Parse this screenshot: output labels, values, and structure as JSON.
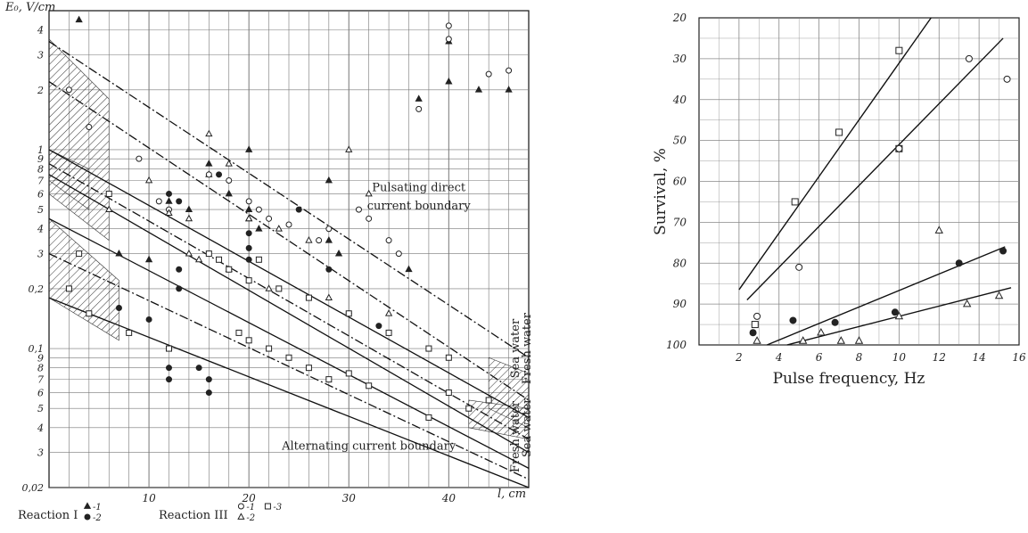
{
  "chart_data": [
    {
      "type": "scatter",
      "title": "",
      "ylabel": "E₀, V/cm",
      "xlabel": "l, cm",
      "xlim": [
        0,
        48
      ],
      "ylim_log": [
        0.02,
        5
      ],
      "y_scale": "log",
      "grid": true,
      "x_ticks": [
        10,
        20,
        30,
        40
      ],
      "y_ticks": [
        {
          "v": 4,
          "t": "4"
        },
        {
          "v": 3,
          "t": "3"
        },
        {
          "v": 2,
          "t": "2"
        },
        {
          "v": 1,
          "t": "1"
        },
        {
          "v": 0.9,
          "t": "9"
        },
        {
          "v": 0.8,
          "t": "8"
        },
        {
          "v": 0.7,
          "t": "7"
        },
        {
          "v": 0.6,
          "t": "6"
        },
        {
          "v": 0.5,
          "t": "5"
        },
        {
          "v": 0.4,
          "t": "4"
        },
        {
          "v": 0.3,
          "t": "3"
        },
        {
          "v": 0.2,
          "t": "0,2"
        },
        {
          "v": 0.1,
          "t": "0,1"
        },
        {
          "v": 0.09,
          "t": "9"
        },
        {
          "v": 0.08,
          "t": "8"
        },
        {
          "v": 0.07,
          "t": "7"
        },
        {
          "v": 0.06,
          "t": "6"
        },
        {
          "v": 0.05,
          "t": "5"
        },
        {
          "v": 0.04,
          "t": "4"
        },
        {
          "v": 0.03,
          "t": "3"
        },
        {
          "v": 0.02,
          "t": "0,02"
        }
      ],
      "lines": [
        {
          "kind": "dashdot",
          "points": [
            [
              0,
              3.5
            ],
            [
              48,
              0.09
            ]
          ]
        },
        {
          "kind": "dashdot",
          "points": [
            [
              0,
              2.2
            ],
            [
              48,
              0.055
            ]
          ]
        },
        {
          "kind": "solid",
          "points": [
            [
              0,
              1.0
            ],
            [
              48,
              0.045
            ]
          ]
        },
        {
          "kind": "dashdot",
          "points": [
            [
              0,
              0.85
            ],
            [
              48,
              0.035
            ]
          ]
        },
        {
          "kind": "solid",
          "points": [
            [
              0,
              0.75
            ],
            [
              48,
              0.03
            ]
          ]
        },
        {
          "kind": "solid",
          "points": [
            [
              0,
              0.45
            ],
            [
              48,
              0.025
            ]
          ]
        },
        {
          "kind": "dashdot",
          "points": [
            [
              0,
              0.3
            ],
            [
              48,
              0.022
            ]
          ]
        },
        {
          "kind": "solid",
          "points": [
            [
              0,
              0.18
            ],
            [
              48,
              0.02
            ]
          ]
        }
      ],
      "hatched_regions": [
        {
          "points": [
            [
              0,
              3.6
            ],
            [
              6,
              1.8
            ],
            [
              6,
              0.35
            ],
            [
              0,
              0.6
            ]
          ]
        },
        {
          "points": [
            [
              0,
              1.0
            ],
            [
              4,
              0.8
            ],
            [
              4,
              0.5
            ],
            [
              0,
              0.7
            ]
          ]
        },
        {
          "points": [
            [
              0,
              0.45
            ],
            [
              7,
              0.22
            ],
            [
              7,
              0.11
            ],
            [
              0,
              0.18
            ]
          ]
        },
        {
          "points": [
            [
              42,
              0.055
            ],
            [
              48,
              0.05
            ],
            [
              48,
              0.035
            ],
            [
              42,
              0.04
            ]
          ]
        },
        {
          "points": [
            [
              44,
              0.09
            ],
            [
              48,
              0.075
            ],
            [
              48,
              0.04
            ],
            [
              44,
              0.05
            ]
          ]
        }
      ],
      "series": [
        {
          "name": "Reaction I -1",
          "marker": "triangle-filled",
          "points": [
            [
              3,
              4.5
            ],
            [
              12,
              0.55
            ],
            [
              14,
              0.5
            ],
            [
              16,
              0.85
            ],
            [
              16,
              0.75
            ],
            [
              18,
              0.6
            ],
            [
              20,
              1.0
            ],
            [
              20,
              0.5
            ],
            [
              20,
              0.45
            ],
            [
              21,
              0.4
            ],
            [
              28,
              0.7
            ],
            [
              28,
              0.35
            ],
            [
              29,
              0.3
            ],
            [
              36,
              0.25
            ],
            [
              37,
              1.8
            ],
            [
              40,
              3.5
            ],
            [
              40,
              2.2
            ],
            [
              43,
              2.0
            ],
            [
              46,
              2.0
            ],
            [
              7,
              0.3
            ],
            [
              10,
              0.28
            ]
          ]
        },
        {
          "name": "Reaction I -2",
          "marker": "circle-filled",
          "points": [
            [
              12,
              0.6
            ],
            [
              13,
              0.55
            ],
            [
              13,
              0.25
            ],
            [
              13,
              0.2
            ],
            [
              17,
              0.75
            ],
            [
              20,
              0.38
            ],
            [
              20,
              0.32
            ],
            [
              20,
              0.28
            ],
            [
              25,
              0.5
            ],
            [
              28,
              0.25
            ],
            [
              30,
              0.15
            ],
            [
              33,
              0.13
            ],
            [
              15,
              0.08
            ],
            [
              16,
              0.07
            ],
            [
              12,
              0.08
            ],
            [
              12,
              0.07
            ],
            [
              16,
              0.06
            ],
            [
              10,
              0.14
            ],
            [
              7,
              0.16
            ]
          ]
        },
        {
          "name": "Reaction III -1",
          "marker": "circle-open",
          "points": [
            [
              2,
              2.0
            ],
            [
              4,
              1.3
            ],
            [
              9,
              0.9
            ],
            [
              16,
              0.75
            ],
            [
              18,
              0.7
            ],
            [
              20,
              0.55
            ],
            [
              21,
              0.5
            ],
            [
              22,
              0.45
            ],
            [
              24,
              0.42
            ],
            [
              27,
              0.35
            ],
            [
              28,
              0.4
            ],
            [
              31,
              0.5
            ],
            [
              32,
              0.45
            ],
            [
              34,
              0.35
            ],
            [
              35,
              0.3
            ],
            [
              40,
              4.2
            ],
            [
              40,
              3.6
            ],
            [
              44,
              2.4
            ],
            [
              46,
              2.5
            ],
            [
              37,
              1.6
            ],
            [
              11,
              0.55
            ],
            [
              12,
              0.5
            ]
          ]
        },
        {
          "name": "Reaction III -2",
          "marker": "triangle-open",
          "points": [
            [
              6,
              0.5
            ],
            [
              10,
              0.7
            ],
            [
              12,
              0.48
            ],
            [
              14,
              0.45
            ],
            [
              16,
              1.2
            ],
            [
              18,
              0.85
            ],
            [
              20,
              0.45
            ],
            [
              23,
              0.4
            ],
            [
              26,
              0.35
            ],
            [
              30,
              1.0
            ],
            [
              32,
              0.6
            ],
            [
              14,
              0.3
            ],
            [
              15,
              0.28
            ],
            [
              18,
              0.25
            ],
            [
              22,
              0.2
            ],
            [
              28,
              0.18
            ],
            [
              34,
              0.15
            ]
          ]
        },
        {
          "name": "Reaction III -3",
          "marker": "square-open",
          "points": [
            [
              6,
              0.6
            ],
            [
              3,
              0.3
            ],
            [
              2,
              0.2
            ],
            [
              4,
              0.15
            ],
            [
              16,
              0.3
            ],
            [
              17,
              0.28
            ],
            [
              18,
              0.25
            ],
            [
              20,
              0.22
            ],
            [
              21,
              0.28
            ],
            [
              23,
              0.2
            ],
            [
              26,
              0.18
            ],
            [
              30,
              0.15
            ],
            [
              34,
              0.12
            ],
            [
              38,
              0.1
            ],
            [
              40,
              0.09
            ],
            [
              19,
              0.12
            ],
            [
              20,
              0.11
            ],
            [
              22,
              0.1
            ],
            [
              24,
              0.09
            ],
            [
              26,
              0.08
            ],
            [
              28,
              0.07
            ],
            [
              30,
              0.075
            ],
            [
              32,
              0.065
            ],
            [
              8,
              0.12
            ],
            [
              12,
              0.1
            ],
            [
              40,
              0.06
            ],
            [
              42,
              0.05
            ],
            [
              44,
              0.055
            ],
            [
              38,
              0.045
            ]
          ]
        }
      ],
      "annotations": [
        {
          "text": "Pulsating direct",
          "at": [
            37,
            0.62
          ]
        },
        {
          "text": "current boundary",
          "at": [
            37,
            0.5
          ]
        },
        {
          "text": "Alternating current boundary",
          "at": [
            32,
            0.031
          ]
        },
        {
          "text": "Sea water",
          "at": [
            47,
            0.1
          ],
          "rotate": -90
        },
        {
          "text": "Fresh water",
          "at": [
            48.2,
            0.1
          ],
          "rotate": -90
        },
        {
          "text": "Sea water",
          "at": [
            48.2,
            0.04
          ],
          "rotate": -90
        },
        {
          "text": "Fresh water",
          "at": [
            47,
            0.036
          ],
          "rotate": -90
        }
      ],
      "legend": {
        "groups": [
          {
            "title": "Reaction I",
            "items": [
              {
                "marker": "triangle-filled",
                "text": "-1"
              },
              {
                "marker": "circle-filled",
                "text": "-2"
              }
            ]
          },
          {
            "title": "Reaction III",
            "items": [
              {
                "marker": "circle-open",
                "text": "-1"
              },
              {
                "marker": "triangle-open",
                "text": "-2"
              },
              {
                "marker": "square-open",
                "text": "-3"
              }
            ]
          }
        ]
      }
    },
    {
      "type": "scatter",
      "title": "",
      "xlabel": "Pulse frequency, Hz",
      "ylabel": "Survival, %",
      "xlim": [
        0,
        16
      ],
      "ylim": [
        20,
        100
      ],
      "y_inverted": true,
      "grid": true,
      "x_ticks": [
        2,
        4,
        6,
        8,
        10,
        12,
        14,
        16
      ],
      "y_ticks": [
        20,
        30,
        40,
        50,
        60,
        70,
        80,
        90,
        100
      ],
      "lines": [
        {
          "kind": "solid",
          "points": [
            [
              2,
              86.5
            ],
            [
              11.6,
              20
            ]
          ]
        },
        {
          "kind": "solid",
          "points": [
            [
              2.4,
              89
            ],
            [
              15.2,
              25
            ]
          ]
        },
        {
          "kind": "solid",
          "points": [
            [
              3.4,
              100
            ],
            [
              15.3,
              76
            ]
          ]
        },
        {
          "kind": "solid",
          "points": [
            [
              4.4,
              100
            ],
            [
              15.6,
              86
            ]
          ]
        }
      ],
      "series": [
        {
          "name": "",
          "marker": "square-open",
          "points": [
            [
              2.8,
              95
            ],
            [
              4.8,
              65
            ],
            [
              7.0,
              48
            ],
            [
              10.0,
              28
            ],
            [
              10.0,
              52
            ]
          ]
        },
        {
          "name": "",
          "marker": "circle-open",
          "points": [
            [
              2.9,
              93
            ],
            [
              5.0,
              81
            ],
            [
              10.0,
              52
            ],
            [
              13.5,
              30
            ],
            [
              15.4,
              35
            ]
          ]
        },
        {
          "name": "",
          "marker": "circle-filled",
          "points": [
            [
              2.7,
              97
            ],
            [
              4.7,
              94
            ],
            [
              6.8,
              94.5
            ],
            [
              9.8,
              92
            ],
            [
              13.0,
              80
            ],
            [
              15.2,
              77
            ]
          ]
        },
        {
          "name": "",
          "marker": "triangle-open",
          "points": [
            [
              2.9,
              99
            ],
            [
              5.2,
              99
            ],
            [
              6.1,
              97
            ],
            [
              7.1,
              99
            ],
            [
              8.0,
              99
            ],
            [
              10.0,
              93
            ],
            [
              12.0,
              72
            ],
            [
              13.4,
              90
            ],
            [
              15.0,
              88
            ]
          ]
        }
      ]
    }
  ]
}
